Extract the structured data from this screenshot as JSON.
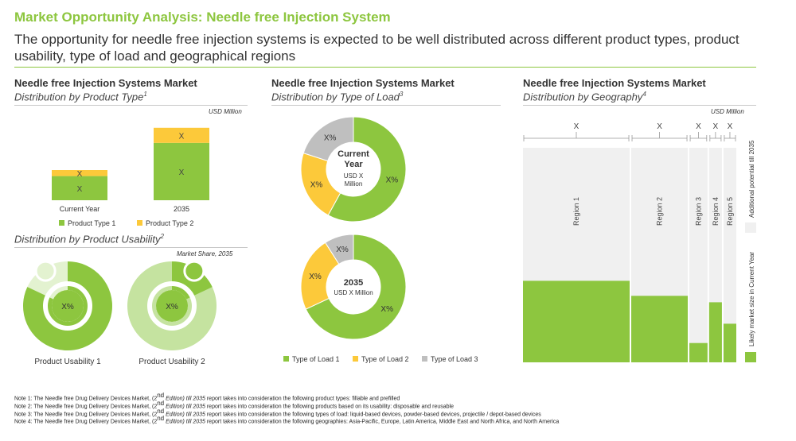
{
  "header": {
    "title": "Market Opportunity Analysis: Needle free Injection System",
    "subtitle": "The opportunity for needle free injection systems is expected to be well distributed across different product types, product usability, type of load and geographical regions"
  },
  "panels": {
    "product_type": {
      "heading": "Needle free Injection Systems Market",
      "sub": "Distribution by Product Type",
      "sup": "1",
      "unit": "USD Million"
    },
    "usability": {
      "sub": "Distribution by Product Usability",
      "sup": "2",
      "unit": "Market Share, 2035"
    },
    "load": {
      "heading": "Needle free Injection Systems Market",
      "sub": "Distribution by Type of Load",
      "sup": "3"
    },
    "geography": {
      "heading": "Needle free Injection Systems Market",
      "sub": "Distribution by Geography",
      "sup": "4",
      "unit": "USD Million"
    }
  },
  "colors": {
    "green": "#8dc63f",
    "light_green": "#c5e3a0",
    "pale_green": "#e3f2d0",
    "yellow": "#fcc93a",
    "grey": "#bfbfbf",
    "light_grey": "#f0f0f0",
    "title_green": "#8dc63f"
  },
  "chart_data": [
    {
      "type": "bar",
      "stacked": true,
      "categories": [
        "Current Year",
        "2035"
      ],
      "series": [
        {
          "name": "Product Type 1",
          "values": [
            1.6,
            3.8
          ],
          "labels": [
            "X",
            "X"
          ]
        },
        {
          "name": "Product Type 2",
          "values": [
            0.4,
            1.0
          ],
          "labels": [
            "X",
            "X"
          ]
        }
      ],
      "ylim": [
        0,
        5
      ]
    },
    {
      "type": "pie",
      "donut": true,
      "categories": [
        "Product Usability 1",
        "Product Usability 2"
      ],
      "charts": [
        {
          "label": "Product Usability 1",
          "center": "X%",
          "share": 0.82
        },
        {
          "label": "Product Usability 2",
          "center": "X%",
          "share": 0.18
        }
      ]
    },
    {
      "type": "pie",
      "donut": true,
      "categories": [
        "Type of Load 1",
        "Type of Load  2",
        "Type of Load 3"
      ],
      "charts": [
        {
          "center_title": "Current Year",
          "center_sub": "USD X Million",
          "values": [
            0.58,
            0.22,
            0.2
          ],
          "labels": [
            "X%",
            "X%",
            "X%"
          ]
        },
        {
          "center_title": "2035",
          "center_sub": "USD X Million",
          "values": [
            0.68,
            0.23,
            0.09
          ],
          "labels": [
            "X%",
            "X%",
            "X%"
          ]
        }
      ]
    },
    {
      "type": "bar",
      "subtype": "mekko",
      "categories": [
        "Region 1",
        "Region 2",
        "Region 3",
        "Region 4",
        "Region 5"
      ],
      "top_labels": [
        "X",
        "X",
        "X",
        "X",
        "X"
      ],
      "widths": [
        1.0,
        0.53,
        0.17,
        0.12,
        0.12
      ],
      "current_share": [
        0.38,
        0.31,
        0.09,
        0.28,
        0.18
      ],
      "series": [
        {
          "name": "Likely market size in Current Year",
          "values": [
            0.38,
            0.31,
            0.09,
            0.28,
            0.18
          ]
        },
        {
          "name": "Additional potential till 2035",
          "values": [
            0.62,
            0.69,
            0.91,
            0.72,
            0.82
          ]
        }
      ]
    }
  ],
  "legend_pt": [
    "Product Type 1",
    "Product Type 2"
  ],
  "legend_load": [
    "Type of Load 1",
    "Type of Load  2",
    "Type of Load 3"
  ],
  "geo_legend": {
    "current": "Likely market size in Current Year",
    "additional": "Additional potential till 2035"
  },
  "notes": [
    {
      "prefix": "Note 1: The Needle free Drug Delivery Devices Market, (2",
      "sup": "nd",
      "mid": " Edition) till 2035",
      "rest": " report takes into consideration the following product types: fillable and prefilled"
    },
    {
      "prefix": "Note 2: The Needle free Drug Delivery Devices Market, (2",
      "sup": "nd",
      "mid": " Edition) till 2035",
      "rest": " report takes into consideration the following products based on its usability: disposable and reusable"
    },
    {
      "prefix": "Note 3: The Needle free Drug Delivery Devices Market, (2",
      "sup": "nd",
      "mid": " Edition) till 2035",
      "rest": " report takes into consideration the following types of load: liquid-based devices, powder-based devices, projectile / depot-based devices"
    },
    {
      "prefix": "Note 4: The Needle free Drug Delivery Devices Market, (2",
      "sup": "nd",
      "mid": " Edition) till 2035",
      "rest": " report takes into consideration the following geographies: Asia-Pacific, Europe, Latin America, Middle East and North Africa, and North America"
    }
  ]
}
